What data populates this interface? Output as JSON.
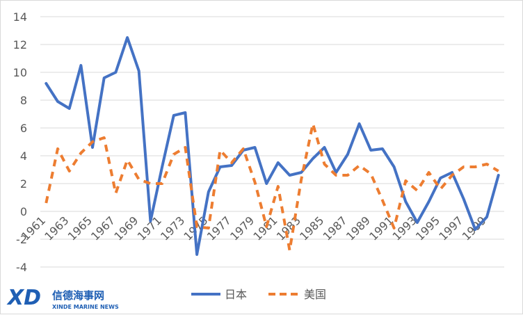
{
  "chart_data": {
    "type": "line",
    "title": "",
    "xlabel": "",
    "ylabel": "",
    "ylim": [
      -4,
      14
    ],
    "yticks": [
      -4,
      -2,
      0,
      2,
      4,
      6,
      8,
      10,
      12,
      14
    ],
    "grid": "horizontal",
    "legend_position": "bottom",
    "x": [
      "1961",
      "1962",
      "1963",
      "1964",
      "1965",
      "1966",
      "1967",
      "1968",
      "1969",
      "1970",
      "1971",
      "1972",
      "1973",
      "1974",
      "1975",
      "1976",
      "1977",
      "1978",
      "1979",
      "1980",
      "1981",
      "1982",
      "1983",
      "1984",
      "1985",
      "1986",
      "1987",
      "1988",
      "1989",
      "1990",
      "1991",
      "1992",
      "1993",
      "1994",
      "1995",
      "1996",
      "1997",
      "1998",
      "1999",
      "2000"
    ],
    "xtick_labels": [
      "1961",
      "1963",
      "1965",
      "1967",
      "1969",
      "1971",
      "1973",
      "1975",
      "1977",
      "1979",
      "1981",
      "1983",
      "1985",
      "1987",
      "1989",
      "1991",
      "1993",
      "1995",
      "1997",
      "1999"
    ],
    "series": [
      {
        "name": "日本",
        "color": "#4472c4",
        "style": "solid",
        "values": [
          9.2,
          7.9,
          7.4,
          10.5,
          4.6,
          9.6,
          10.0,
          12.5,
          10.1,
          -0.7,
          3.2,
          6.9,
          7.1,
          -3.1,
          1.4,
          3.2,
          3.3,
          4.4,
          4.6,
          2.0,
          3.5,
          2.6,
          2.8,
          3.8,
          4.6,
          2.8,
          4.1,
          6.3,
          4.4,
          4.5,
          3.2,
          0.7,
          -0.8,
          0.7,
          2.4,
          2.8,
          0.9,
          -1.3,
          -0.4,
          2.6
        ]
      },
      {
        "name": "美国",
        "color": "#ed7d31",
        "style": "dashed",
        "values": [
          0.6,
          4.5,
          2.9,
          4.2,
          5.0,
          5.3,
          1.3,
          3.7,
          2.3,
          2.0,
          2.0,
          4.1,
          4.6,
          -1.1,
          -1.2,
          4.4,
          3.5,
          4.5,
          2.1,
          -1.1,
          1.8,
          -2.8,
          2.3,
          6.3,
          3.4,
          2.6,
          2.6,
          3.3,
          2.7,
          0.8,
          -1.2,
          2.2,
          1.5,
          2.8,
          1.6,
          2.6,
          3.2,
          3.2,
          3.4,
          2.9
        ]
      }
    ]
  },
  "legend": {
    "items": [
      {
        "label": "日本",
        "color": "#4472c4"
      },
      {
        "label": "美国",
        "color": "#ed7d31"
      }
    ]
  },
  "watermark": {
    "mark": "XD",
    "name_cn": "信德海事网",
    "name_en": "XINDE MARINE NEWS",
    "color": "#1f5fb4"
  }
}
